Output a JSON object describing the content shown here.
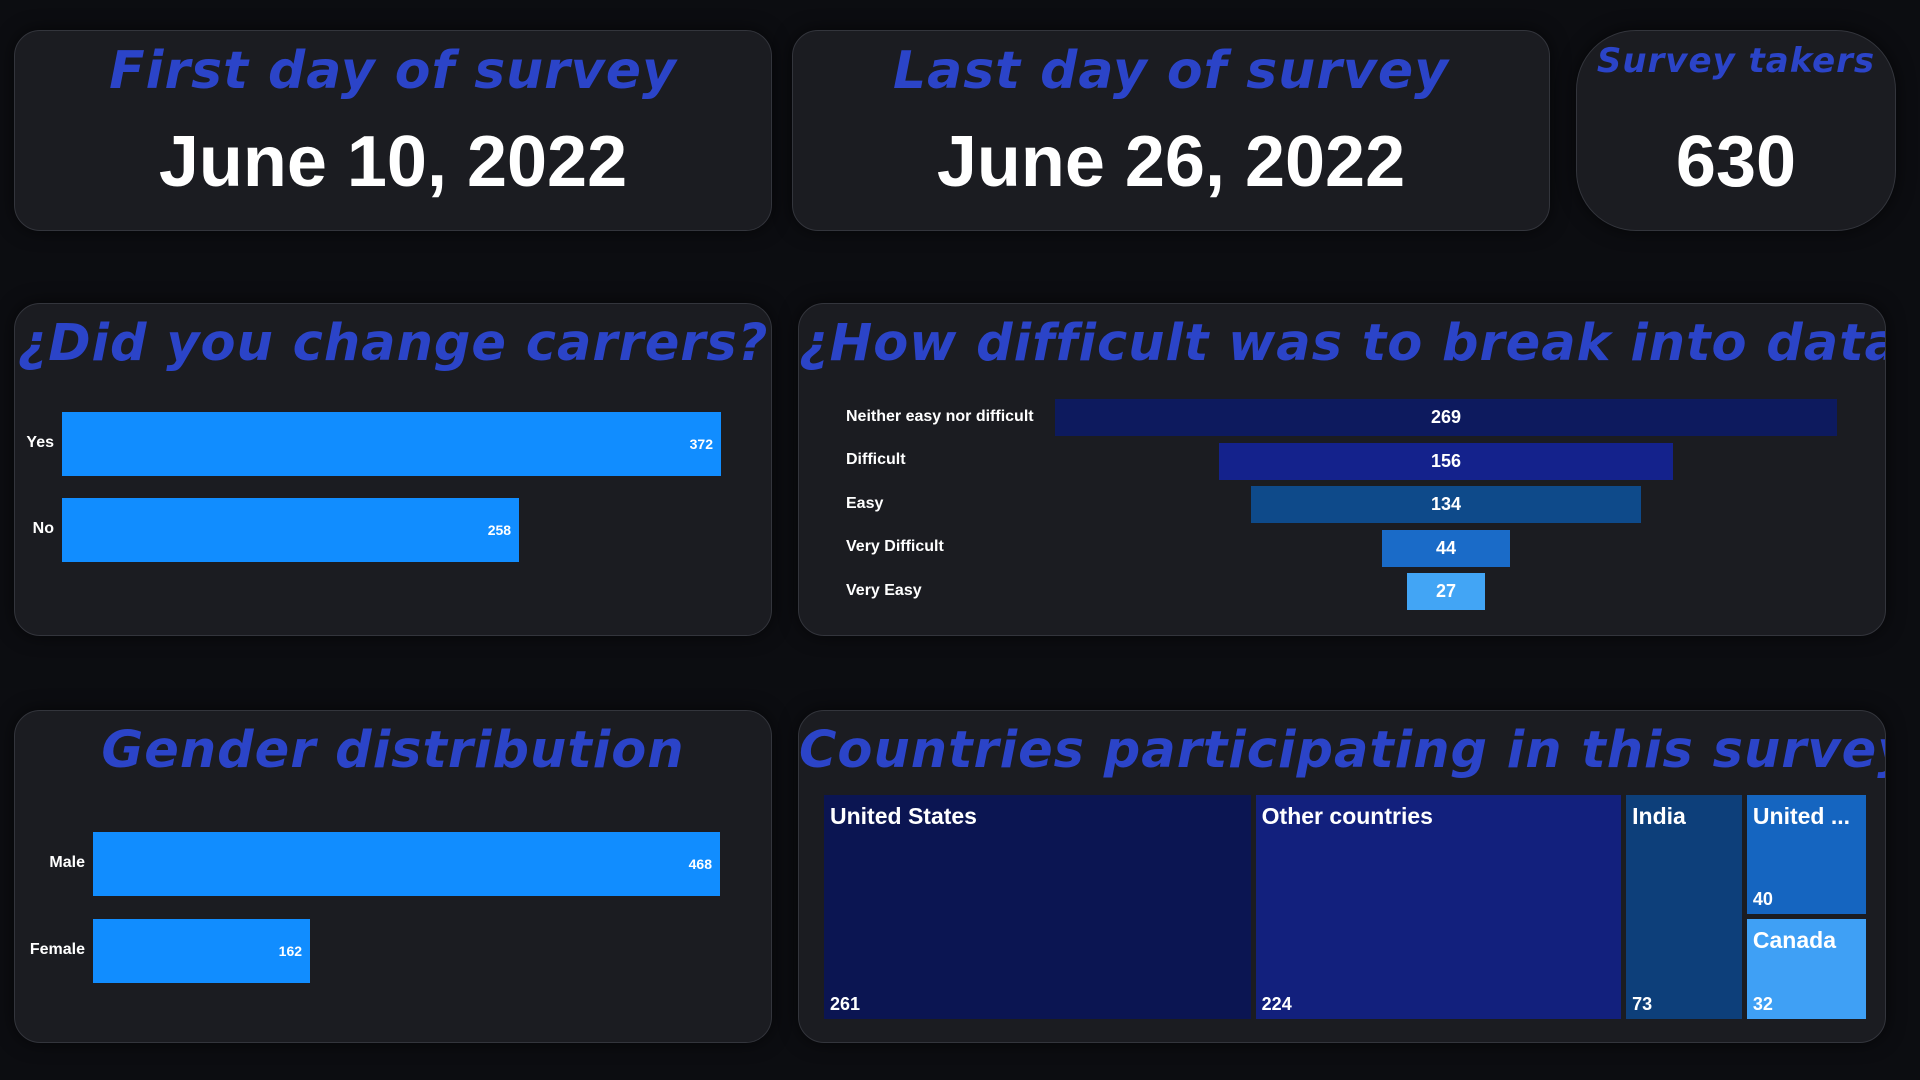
{
  "kpi": {
    "first_day": {
      "title": "First day of survey",
      "value": "June 10, 2022"
    },
    "last_day": {
      "title": "Last day of survey",
      "value": "June 26, 2022"
    },
    "takers": {
      "title": "Survey takers",
      "value": "630"
    }
  },
  "colors": {
    "background": "#0c0d11",
    "card": "#1b1c21",
    "title": "#2b44c8",
    "bar": "#118dff"
  },
  "chart_data": [
    {
      "type": "bar",
      "orientation": "horizontal",
      "title": "¿Did you change carrers?",
      "categories": [
        "Yes",
        "No"
      ],
      "values": [
        372,
        258
      ],
      "max": 372
    },
    {
      "type": "bar",
      "subtype": "funnel",
      "title": "¿How difficult was to break into data?",
      "categories": [
        "Neither easy nor difficult",
        "Difficult",
        "Easy",
        "Very Difficult",
        "Very Easy"
      ],
      "values": [
        269,
        156,
        134,
        44,
        27
      ],
      "colors": [
        "#0d1a5e",
        "#14228c",
        "#0e4a8a",
        "#1a6bc8",
        "#42a5f5"
      ]
    },
    {
      "type": "bar",
      "orientation": "horizontal",
      "title": "Gender distribution",
      "categories": [
        "Male",
        "Female"
      ],
      "values": [
        468,
        162
      ],
      "max": 468
    },
    {
      "type": "treemap",
      "title": "Countries participating in this survey",
      "categories": [
        "United States",
        "Other countries",
        "India",
        "United ...",
        "Canada"
      ],
      "values": [
        261,
        224,
        73,
        40,
        32
      ],
      "colors": [
        "#0b1552",
        "#12207d",
        "#0d3f7a",
        "#1565c0",
        "#3fa0f5"
      ]
    }
  ]
}
